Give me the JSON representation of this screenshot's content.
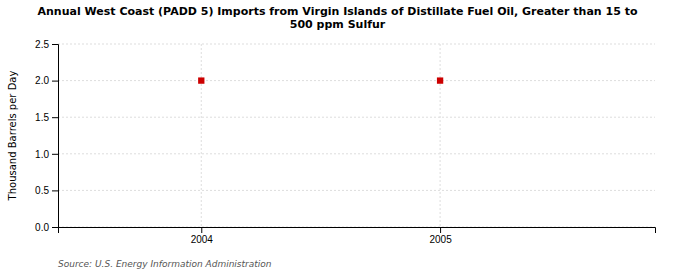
{
  "chart_data": {
    "type": "scatter",
    "title": "Annual West Coast (PADD 5) Imports from Virgin Islands of Distillate Fuel Oil, Greater than 15 to\n500 ppm Sulfur",
    "ylabel": "Thousand Barrels per Day",
    "source": "Source: U.S. Energy Information Administration",
    "x": [
      2004,
      2005
    ],
    "values": [
      2.0,
      2.0
    ],
    "color": "#cc0000",
    "marker": "square",
    "xlim": [
      2003.4,
      2005.9
    ],
    "xticks": [
      2004,
      2005
    ],
    "ylim": [
      0.0,
      2.5
    ],
    "yticks": [
      {
        "value": 0.0,
        "label": "0.0"
      },
      0.5,
      {
        "value": 1.0,
        "label": "1.0"
      },
      1.5,
      {
        "value": 2.0,
        "label": "2.0"
      },
      2.5
    ],
    "grid": true
  }
}
